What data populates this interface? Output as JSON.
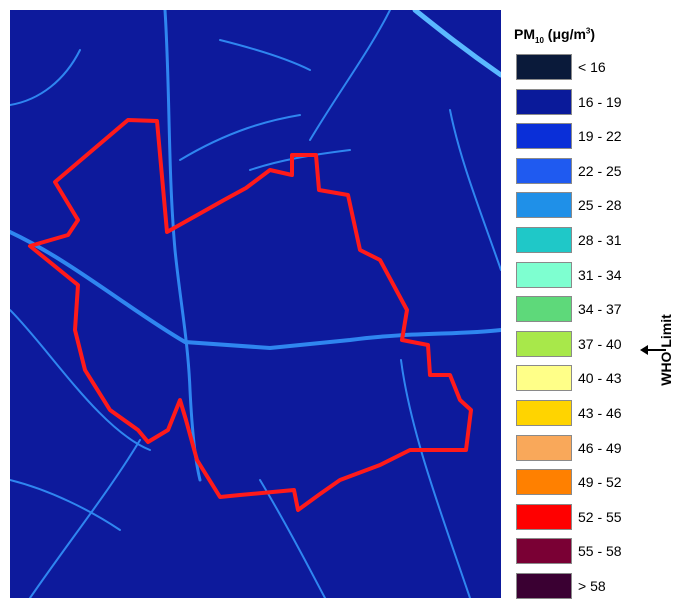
{
  "map": {
    "background_color": "#0d1a9c",
    "road_color": "#2f86f0",
    "boundary_color": "#ff1a1a"
  },
  "legend": {
    "title_main": "PM",
    "title_sub": "10",
    "title_unit_pre": " (μg/m",
    "title_unit_sup": "3",
    "title_unit_post": ")",
    "items": [
      {
        "label": "< 16",
        "color": "#0a1a3a"
      },
      {
        "label": "16 - 19",
        "color": "#0a1a9a"
      },
      {
        "label": "19 - 22",
        "color": "#0a2fd8"
      },
      {
        "label": "22 - 25",
        "color": "#1f5af0"
      },
      {
        "label": "25 - 28",
        "color": "#1f90e8"
      },
      {
        "label": "28 - 31",
        "color": "#1fc8c8"
      },
      {
        "label": "31 - 34",
        "color": "#7effd0"
      },
      {
        "label": "34 - 37",
        "color": "#5ed97a"
      },
      {
        "label": "37 - 40",
        "color": "#a8e84a"
      },
      {
        "label": "40 - 43",
        "color": "#ffff88"
      },
      {
        "label": "43 - 46",
        "color": "#ffd400"
      },
      {
        "label": "46 - 49",
        "color": "#f9a85a"
      },
      {
        "label": "49 - 52",
        "color": "#ff8000"
      },
      {
        "label": "52 - 55",
        "color": "#ff0000"
      },
      {
        "label": "55 - 58",
        "color": "#7a0034"
      },
      {
        "label": "> 58",
        "color": "#3a0032"
      }
    ]
  },
  "annotation": {
    "who_limit": "WHO Limit"
  }
}
